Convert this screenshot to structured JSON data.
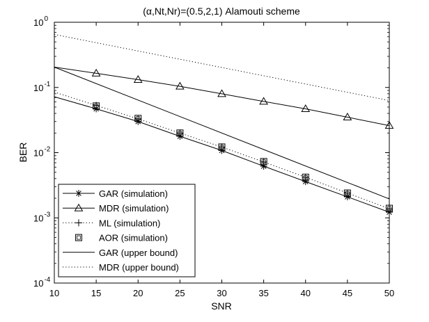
{
  "chart_data": {
    "type": "line",
    "title": "(α,Nt,Nr)=(0.5,2,1) Alamouti scheme",
    "xlabel": "SNR",
    "ylabel": "BER",
    "xlim": [
      10,
      50
    ],
    "ylim_log10": [
      -4,
      0
    ],
    "y_scale": "log",
    "grid": false,
    "x_ticks": [
      "10",
      "15",
      "20",
      "25",
      "30",
      "35",
      "40",
      "45",
      "50"
    ],
    "y_ticks": [
      {
        "base": "10",
        "exp": "0",
        "log10": 0
      },
      {
        "base": "10",
        "exp": "-1",
        "log10": -1
      },
      {
        "base": "10",
        "exp": "-2",
        "log10": -2
      },
      {
        "base": "10",
        "exp": "-3",
        "log10": -3
      },
      {
        "base": "10",
        "exp": "-4",
        "log10": -4
      }
    ],
    "legend_position": "bottom-left",
    "series": [
      {
        "name": "GAR (simulation)",
        "style": "solid",
        "marker": "asterisk",
        "x": [
          10,
          15,
          20,
          25,
          30,
          35,
          40,
          45,
          50
        ],
        "values": [
          0.072,
          0.047,
          0.03,
          0.0178,
          0.0108,
          0.0062,
          0.0036,
          0.0021,
          0.00122
        ]
      },
      {
        "name": "MDR (simulation)",
        "style": "solid",
        "marker": "triangle",
        "x": [
          10,
          15,
          20,
          25,
          30,
          35,
          40,
          45,
          50
        ],
        "values": [
          0.205,
          0.165,
          0.132,
          0.104,
          0.08,
          0.061,
          0.047,
          0.035,
          0.026
        ]
      },
      {
        "name": "ML (simulation)",
        "style": "dotted",
        "marker": "plus",
        "x": [
          10,
          15,
          20,
          25,
          30,
          35,
          40,
          45,
          50
        ],
        "values": [
          0.085,
          0.053,
          0.033,
          0.02,
          0.0122,
          0.0072,
          0.0042,
          0.0024,
          0.00138
        ]
      },
      {
        "name": "AOR (simulation)",
        "style": "none",
        "marker": "square",
        "x": [
          15,
          20,
          25,
          30,
          35,
          40,
          45,
          50
        ],
        "values": [
          0.052,
          0.0335,
          0.02,
          0.0122,
          0.0073,
          0.0042,
          0.0024,
          0.0014
        ]
      },
      {
        "name": "GAR (upper bound)",
        "style": "solid",
        "marker": "none",
        "x": [
          10,
          50
        ],
        "values": [
          0.205,
          0.00195
        ]
      },
      {
        "name": "MDR (upper bound)",
        "style": "dotted",
        "marker": "none",
        "x": [
          10,
          50
        ],
        "values": [
          0.65,
          0.063
        ]
      }
    ]
  }
}
